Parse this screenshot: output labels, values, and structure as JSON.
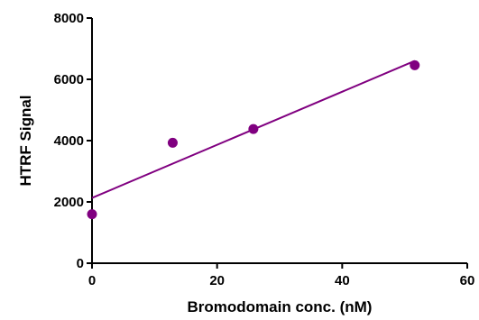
{
  "chart_data": {
    "type": "scatter",
    "xlabel": "Bromodomain conc. (nM)",
    "ylabel": "HTRF Signal",
    "xlim": [
      0,
      60
    ],
    "ylim": [
      0,
      8000
    ],
    "x_ticks": [
      0,
      20,
      40,
      60
    ],
    "y_ticks": [
      0,
      2000,
      4000,
      6000,
      8000
    ],
    "x_tick_labels": [
      "0",
      "20",
      "40",
      "60"
    ],
    "y_tick_labels": [
      "0",
      "2000",
      "4000",
      "6000",
      "8000"
    ],
    "grid": false,
    "series": [
      {
        "points": [
          {
            "x": 0,
            "y": 1600
          },
          {
            "x": 12.9,
            "y": 3930
          },
          {
            "x": 25.8,
            "y": 4380
          },
          {
            "x": 51.6,
            "y": 6460
          }
        ]
      }
    ],
    "fit_line": {
      "x": [
        0,
        51.6
      ],
      "y": [
        2130,
        6600
      ]
    },
    "color": "#800080"
  }
}
